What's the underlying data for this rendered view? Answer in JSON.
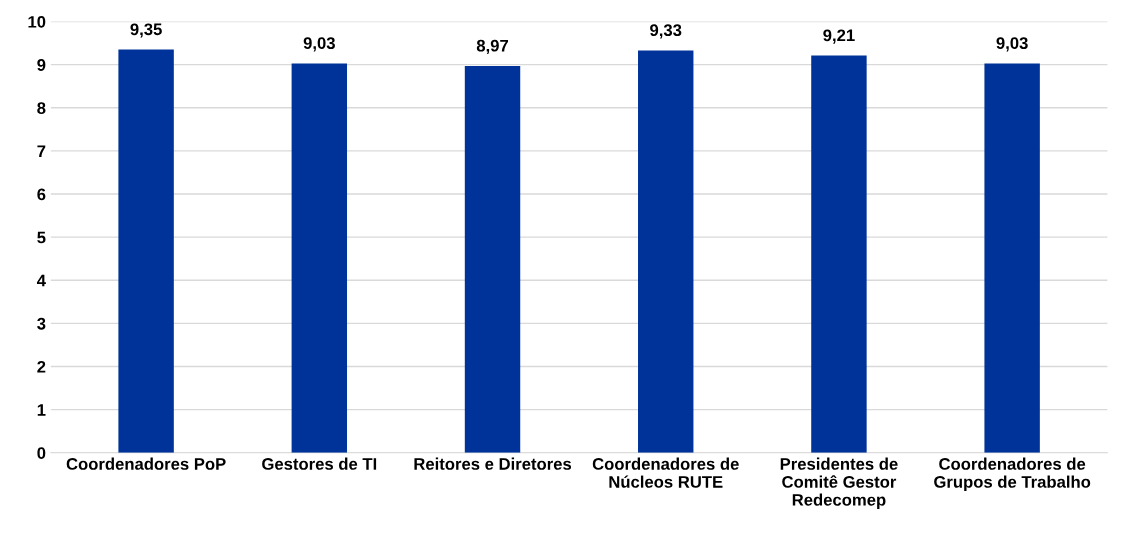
{
  "chart_data": {
    "type": "bar",
    "categories": [
      "Coordenadores PoP",
      "Gestores de TI",
      "Reitores e Diretores",
      "Coordenadores de\nNúcleos RUTE",
      "Presidentes de\nComitê Gestor\nRedecomep",
      "Coordenadores de\nGrupos de Trabalho"
    ],
    "values": [
      9.35,
      9.03,
      8.97,
      9.33,
      9.21,
      9.03
    ],
    "value_labels": [
      "9,35",
      "9,03",
      "8,97",
      "9,33",
      "9,21",
      "9,03"
    ],
    "color": "#003399",
    "ylim": [
      0,
      10
    ],
    "yticks": [
      0,
      1,
      2,
      3,
      4,
      5,
      6,
      7,
      8,
      9,
      10
    ],
    "grid": "y",
    "legend": false
  }
}
